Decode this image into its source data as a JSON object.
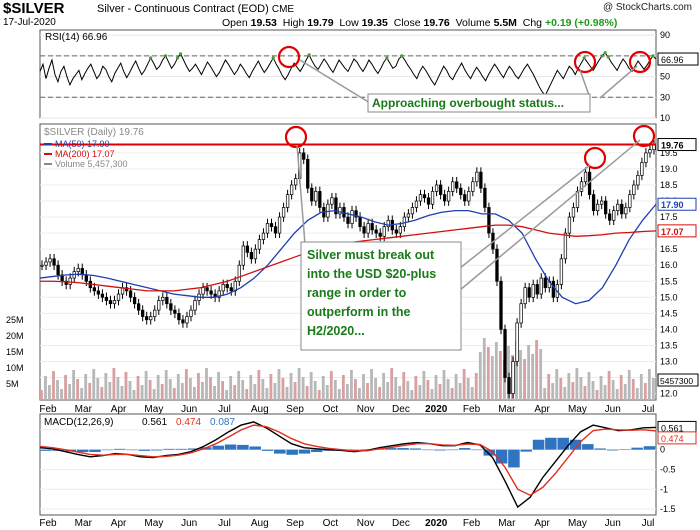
{
  "header": {
    "symbol": "$SILVER",
    "description": "Silver - Continuous Contract (EOD)",
    "exchange": "CME",
    "date": "17-Jul-2020",
    "open_label": "Open",
    "open": "19.53",
    "high_label": "High",
    "high": "19.79",
    "low_label": "Low",
    "low": "19.35",
    "close_label": "Close",
    "close": "19.76",
    "volume_label": "Volume",
    "volume": "5.5M",
    "chg_label": "Chg",
    "chg": "+0.19 (+0.98%)",
    "logo": "@ StockCharts.com"
  },
  "chart_data": [
    {
      "type": "line",
      "panel": "rsi",
      "title": "RSI(14) 66.96",
      "current_value": "66.96",
      "ylim": [
        10,
        95
      ],
      "yticks": [
        10,
        30,
        50,
        70,
        90
      ],
      "ref_lines": [
        30,
        70
      ],
      "annotation": "Approaching overbought status...",
      "series": [
        {
          "values": [
            55,
            62,
            48,
            58,
            66,
            52,
            45,
            55,
            60,
            50,
            42,
            48,
            52,
            56,
            47,
            53,
            58,
            62,
            55,
            48,
            52,
            60,
            57,
            50,
            45,
            53,
            58,
            63,
            55,
            49,
            54,
            60,
            65,
            58,
            52,
            56,
            62,
            68,
            63,
            57,
            60,
            66,
            70,
            64,
            58,
            62,
            68,
            72,
            66,
            60,
            55,
            58,
            62,
            57,
            52,
            58,
            64,
            60,
            55,
            50,
            54,
            60,
            66,
            62,
            57,
            52,
            56,
            62,
            58,
            53,
            49,
            55,
            60,
            65,
            59,
            54,
            58,
            63,
            68,
            62,
            57,
            51,
            47,
            52,
            58,
            63,
            59,
            55,
            60,
            66,
            71,
            65,
            60,
            57,
            62,
            67,
            63,
            58,
            54,
            60,
            66,
            62,
            58,
            55,
            61,
            67,
            64,
            59,
            55,
            60,
            66,
            62,
            57,
            53,
            58,
            64,
            68,
            63,
            58,
            60,
            67,
            70,
            66,
            61,
            57,
            52,
            48,
            55,
            60,
            56,
            51,
            46,
            42,
            48,
            54,
            60,
            56,
            50,
            47,
            53,
            58,
            63,
            57,
            52,
            48,
            54,
            59,
            55,
            50,
            46,
            52,
            57,
            62,
            58,
            53,
            49,
            55,
            60,
            56,
            51,
            48,
            53,
            58,
            62,
            57,
            52,
            46,
            40,
            35,
            32,
            38,
            44,
            50,
            56,
            52,
            48,
            54,
            60,
            57,
            52,
            58,
            63,
            68,
            64,
            60,
            56,
            61,
            66,
            70,
            73,
            69,
            64,
            60,
            56,
            62,
            67,
            63,
            58,
            55,
            60,
            65,
            61,
            57,
            61,
            66,
            70,
            67
          ]
        }
      ]
    },
    {
      "type": "line",
      "panel": "price",
      "title": "$SILVER (Daily) 19.76",
      "current_price": "19.76",
      "ylim": [
        11.8,
        20.4
      ],
      "yticks": [
        12.0,
        12.5,
        13.0,
        13.5,
        14.0,
        14.5,
        15.0,
        15.5,
        16.0,
        16.5,
        17.0,
        17.5,
        18.0,
        18.5,
        19.0,
        19.5
      ],
      "legend": [
        {
          "name": "MA(50) 17.90",
          "color": "#1f3fb0"
        },
        {
          "name": "MA(200) 17.07",
          "color": "#d01010"
        },
        {
          "name": "Volume 5,457,300",
          "color": "#888888"
        }
      ],
      "price_labels": [
        {
          "text": "19.76",
          "color": "#000000"
        },
        {
          "text": "17.90",
          "color": "#1f3fb0"
        },
        {
          "text": "17.07",
          "color": "#d01010"
        }
      ],
      "resistance_level": 19.76,
      "annotation_lines": [
        "Silver must break out",
        "into the USD $20-plus",
        "range in order to",
        "outperform in the",
        "H2/2020..."
      ],
      "volume_ticks": [
        "25M",
        "20M",
        "15M",
        "10M",
        "5M"
      ],
      "volume_current": "5457300",
      "x_labels": [
        "Feb",
        "Mar",
        "Apr",
        "May",
        "Jun",
        "Jul",
        "Aug",
        "Sep",
        "Oct",
        "Nov",
        "Dec",
        "2020",
        "Feb",
        "Mar",
        "Apr",
        "May",
        "Jun",
        "Jul"
      ],
      "series": [
        {
          "name": "MA(50) 17.90",
          "values": [
            15.6,
            15.65,
            15.7,
            15.72,
            15.68,
            15.6,
            15.5,
            15.4,
            15.3,
            15.2,
            15.1,
            15.05,
            15.0,
            15.0,
            15.1,
            15.3,
            15.6,
            16.0,
            16.5,
            17.0,
            17.4,
            17.65,
            17.7,
            17.6,
            17.5,
            17.35,
            17.25,
            17.3,
            17.4,
            17.55,
            17.65,
            17.7,
            17.7,
            17.6,
            17.6,
            17.4,
            17.0,
            16.2,
            15.5,
            15.0,
            14.8,
            14.9,
            15.3,
            16.0,
            16.8,
            17.4,
            17.9
          ]
        },
        {
          "name": "MA(200) 17.07",
          "values": [
            15.5,
            15.5,
            15.48,
            15.45,
            15.4,
            15.35,
            15.3,
            15.25,
            15.2,
            15.2,
            15.2,
            15.25,
            15.3,
            15.4,
            15.5,
            15.65,
            15.8,
            15.95,
            16.1,
            16.25,
            16.4,
            16.5,
            16.6,
            16.7,
            16.75,
            16.8,
            16.85,
            16.9,
            16.95,
            17.0,
            17.05,
            17.1,
            17.15,
            17.2,
            17.25,
            17.25,
            17.2,
            17.1,
            17.0,
            16.95,
            16.9,
            16.92,
            16.95,
            17.0,
            17.02,
            17.05,
            17.07
          ]
        },
        {
          "name": "Price",
          "values": [
            16.0,
            16.1,
            16.2,
            16.0,
            15.7,
            15.5,
            15.4,
            15.6,
            15.8,
            15.9,
            15.7,
            15.5,
            15.3,
            15.2,
            15.1,
            15.0,
            14.9,
            14.8,
            14.9,
            15.1,
            15.3,
            15.2,
            15.0,
            14.8,
            14.6,
            14.4,
            14.3,
            14.4,
            14.6,
            14.9,
            15.0,
            14.8,
            14.6,
            14.5,
            14.3,
            14.2,
            14.4,
            14.6,
            14.9,
            15.1,
            15.3,
            15.2,
            15.1,
            15.0,
            15.2,
            15.4,
            15.3,
            15.2,
            15.5,
            16.0,
            16.6,
            16.4,
            16.2,
            16.5,
            16.8,
            17.0,
            17.3,
            17.2,
            17.0,
            17.5,
            17.8,
            18.2,
            18.5,
            18.7,
            19.5,
            19.3,
            18.4,
            18.0,
            18.3,
            17.8,
            17.5,
            17.9,
            18.1,
            17.6,
            17.8,
            17.5,
            17.3,
            17.7,
            17.5,
            17.2,
            17.0,
            17.3,
            17.1,
            17.0,
            16.9,
            17.2,
            17.4,
            17.1,
            17.0,
            17.2,
            17.5,
            17.6,
            17.8,
            18.0,
            18.2,
            18.1,
            17.9,
            18.3,
            18.5,
            18.2,
            18.0,
            18.3,
            18.6,
            18.4,
            18.2,
            18.0,
            18.3,
            18.6,
            18.9,
            18.4,
            17.8,
            17.0,
            16.5,
            15.5,
            14.0,
            12.5,
            12.0,
            13.0,
            14.2,
            14.8,
            15.3,
            15.0,
            15.4,
            15.1,
            15.6,
            15.3,
            15.5,
            15.0,
            15.4,
            16.2,
            17.0,
            17.5,
            17.8,
            18.3,
            18.6,
            18.9,
            18.2,
            17.7,
            17.9,
            18.0,
            17.6,
            17.4,
            17.7,
            17.9,
            17.6,
            17.8,
            18.2,
            18.5,
            18.8,
            19.2,
            19.5,
            19.6,
            19.76
          ]
        }
      ]
    },
    {
      "type": "line",
      "panel": "macd",
      "title": "MACD(12,26,9)",
      "macd_value": "0.561",
      "signal_value": "0.474",
      "hist_value": "0.087",
      "ylim": [
        -1.65,
        0.9
      ],
      "yticks": [
        0.5,
        0.0,
        -0.5,
        -1.0,
        -1.5
      ],
      "x_labels": [
        "Feb",
        "Mar",
        "Apr",
        "May",
        "Jun",
        "Jul",
        "Aug",
        "Sep",
        "Oct",
        "Nov",
        "Dec",
        "2020",
        "Feb",
        "Mar",
        "Apr",
        "May",
        "Jun",
        "Jul"
      ],
      "series": [
        {
          "name": "MACD",
          "color": "#000000",
          "values": [
            0.05,
            0.02,
            -0.05,
            -0.12,
            -0.18,
            -0.15,
            -0.1,
            -0.12,
            -0.18,
            -0.2,
            -0.15,
            -0.12,
            -0.05,
            0.08,
            0.25,
            0.45,
            0.62,
            0.7,
            0.55,
            0.35,
            0.15,
            0.05,
            0.02,
            0.0,
            -0.02,
            -0.05,
            -0.02,
            0.05,
            0.1,
            0.15,
            0.18,
            0.15,
            0.1,
            0.1,
            0.18,
            0.12,
            -0.2,
            -0.8,
            -1.45,
            -1.2,
            -0.7,
            -0.3,
            0.1,
            0.45,
            0.62,
            0.55,
            0.48,
            0.5,
            0.55,
            0.561
          ]
        },
        {
          "name": "Signal",
          "color": "#e03020",
          "values": [
            0.08,
            0.05,
            0.0,
            -0.06,
            -0.12,
            -0.14,
            -0.12,
            -0.12,
            -0.15,
            -0.18,
            -0.17,
            -0.14,
            -0.08,
            0.02,
            0.15,
            0.32,
            0.5,
            0.62,
            0.58,
            0.45,
            0.28,
            0.15,
            0.08,
            0.03,
            0.0,
            -0.03,
            -0.03,
            0.02,
            0.06,
            0.11,
            0.15,
            0.15,
            0.12,
            0.11,
            0.14,
            0.13,
            -0.05,
            -0.45,
            -1.0,
            -1.15,
            -0.95,
            -0.6,
            -0.2,
            0.2,
            0.48,
            0.52,
            0.5,
            0.49,
            0.5,
            0.474
          ]
        },
        {
          "name": "Histogram",
          "color": "#2f74c0",
          "values": [
            -0.03,
            -0.03,
            -0.05,
            -0.06,
            -0.06,
            -0.01,
            0.02,
            0.0,
            -0.03,
            -0.02,
            0.02,
            0.02,
            0.03,
            0.06,
            0.1,
            0.13,
            0.12,
            0.08,
            -0.03,
            -0.1,
            -0.13,
            -0.1,
            -0.06,
            -0.03,
            -0.02,
            -0.02,
            0.01,
            0.03,
            0.04,
            0.04,
            0.03,
            0.0,
            -0.02,
            -0.01,
            0.04,
            -0.01,
            -0.15,
            -0.35,
            -0.45,
            -0.05,
            0.25,
            0.3,
            0.3,
            0.25,
            0.14,
            0.03,
            -0.02,
            0.01,
            0.05,
            0.087
          ]
        }
      ]
    }
  ]
}
